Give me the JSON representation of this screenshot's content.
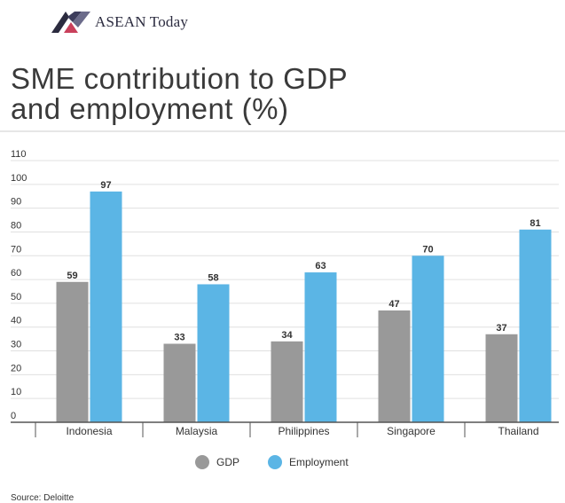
{
  "brand": {
    "name": "ASEAN Today"
  },
  "title_line1": "SME contribution to GDP",
  "title_line2": "and employment (%)",
  "source": "Source: Deloitte",
  "colors": {
    "gdp": "#999999",
    "employment": "#5bb5e5",
    "grid": "#e0e0e0",
    "axis": "#555555",
    "logo_dark": "#2b2b3f",
    "logo_accent": "#c9405b"
  },
  "chart_data": {
    "type": "bar",
    "title": "SME contribution to GDP and employment (%)",
    "categories": [
      "Indonesia",
      "Malaysia",
      "Philippines",
      "Singapore",
      "Thailand"
    ],
    "series": [
      {
        "name": "GDP",
        "values": [
          59,
          33,
          34,
          47,
          37
        ]
      },
      {
        "name": "Employment",
        "values": [
          97,
          58,
          63,
          70,
          81
        ]
      }
    ],
    "yticks": [
      0,
      10,
      20,
      30,
      40,
      50,
      60,
      70,
      80,
      90,
      100,
      110
    ],
    "ylim": [
      0,
      110
    ],
    "xlabel": "",
    "ylabel": "",
    "grid": true,
    "legend": "bottom-center"
  }
}
